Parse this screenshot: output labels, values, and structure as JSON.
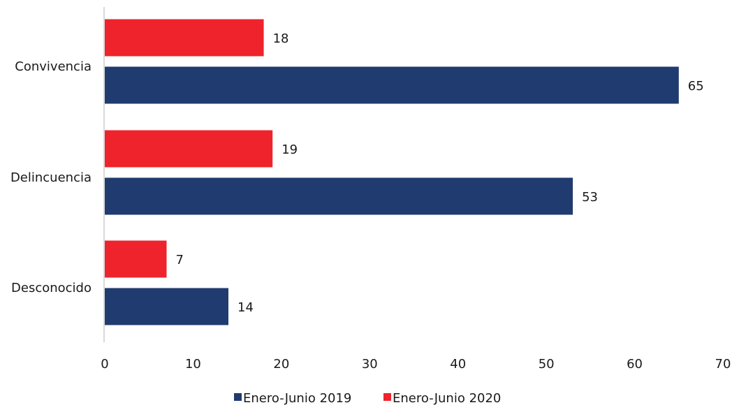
{
  "chart_data": {
    "type": "bar",
    "orientation": "horizontal",
    "categories": [
      "Convivencia",
      "Delincuencia",
      "Desconocido"
    ],
    "series": [
      {
        "name": "Enero-Junio 2020",
        "values": [
          18,
          19,
          7
        ],
        "color": "#ee232c"
      },
      {
        "name": "Enero-Junio 2019",
        "values": [
          65,
          53,
          14
        ],
        "color": "#1f3b70"
      }
    ],
    "xlim": [
      0,
      70
    ],
    "xticks": [
      0,
      10,
      20,
      30,
      40,
      50,
      60,
      70
    ],
    "grid": false,
    "legend_position": "bottom",
    "legend": [
      {
        "label": "Enero-Junio 2019",
        "color": "#1f3b70"
      },
      {
        "label": "Enero-Junio 2020",
        "color": "#ee232c"
      }
    ],
    "data_labels": true
  }
}
